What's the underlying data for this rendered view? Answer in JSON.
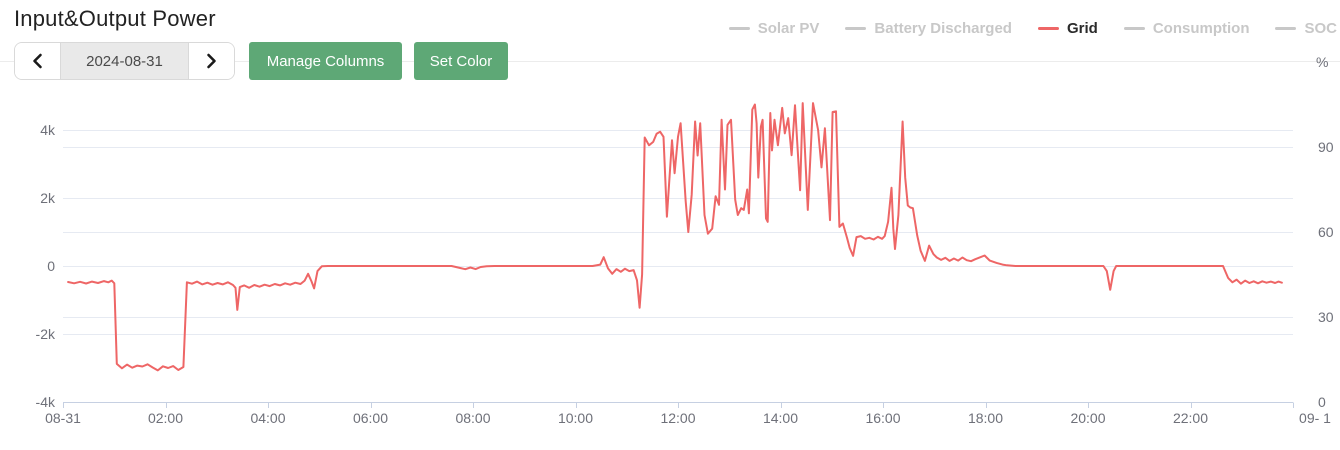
{
  "header": {
    "title": "Input&Output Power",
    "date_nav": {
      "date": "2024-08-31"
    },
    "buttons": {
      "manage_columns": "Manage Columns",
      "set_color": "Set Color"
    }
  },
  "legend": {
    "inactive_color": "#c8c8c8",
    "active_text_color": "#2b2b2b",
    "items": [
      {
        "label": "Solar PV",
        "active": false
      },
      {
        "label": "Battery Discharged",
        "active": false
      },
      {
        "label": "Grid",
        "active": true,
        "color": "#ee6666"
      },
      {
        "label": "Consumption",
        "active": false
      },
      {
        "label": "SOC",
        "active": false
      }
    ]
  },
  "chart_data": {
    "type": "line",
    "title": "Input&Output Power",
    "x_unit": "minutes from 2024-08-31 00:00",
    "x_range": [
      0,
      1440
    ],
    "grid_on": true,
    "legend_position": "top-right",
    "x_ticks": [
      {
        "t": 0,
        "label": "08-31"
      },
      {
        "t": 120,
        "label": "02:00"
      },
      {
        "t": 240,
        "label": "04:00"
      },
      {
        "t": 360,
        "label": "06:00"
      },
      {
        "t": 480,
        "label": "08:00"
      },
      {
        "t": 600,
        "label": "10:00"
      },
      {
        "t": 720,
        "label": "12:00"
      },
      {
        "t": 840,
        "label": "14:00"
      },
      {
        "t": 960,
        "label": "16:00"
      },
      {
        "t": 1080,
        "label": "18:00"
      },
      {
        "t": 1200,
        "label": "20:00"
      },
      {
        "t": 1320,
        "label": "22:00"
      },
      {
        "t": 1440,
        "label": "09- 1",
        "dx": 22
      }
    ],
    "y_left": {
      "unit": "W",
      "min": -4000,
      "max": 6000,
      "ticks": [
        {
          "v": 4000,
          "label": "4k"
        },
        {
          "v": 2000,
          "label": "2k"
        },
        {
          "v": 0,
          "label": "0"
        },
        {
          "v": -2000,
          "label": "-2k"
        },
        {
          "v": -4000,
          "label": "-4k"
        }
      ],
      "gridlines": [
        4000,
        2000,
        0,
        -2000,
        -4000
      ]
    },
    "y_right": {
      "name": "%",
      "min": 0,
      "max": 120,
      "ticks": [
        {
          "v": 90,
          "label": "90"
        },
        {
          "v": 60,
          "label": "60"
        },
        {
          "v": 30,
          "label": "30"
        },
        {
          "v": 0,
          "label": "0"
        }
      ],
      "gridlines": [
        90,
        60,
        30,
        0
      ]
    },
    "series": [
      {
        "name": "Grid",
        "color": "#ee6666",
        "width": 2,
        "axis": "left",
        "points": [
          [
            6,
            -470
          ],
          [
            13,
            -510
          ],
          [
            20,
            -465
          ],
          [
            27,
            -515
          ],
          [
            34,
            -460
          ],
          [
            41,
            -500
          ],
          [
            48,
            -445
          ],
          [
            53,
            -480
          ],
          [
            57,
            -430
          ],
          [
            60,
            -510
          ],
          [
            63,
            -2880
          ],
          [
            69,
            -3010
          ],
          [
            75,
            -2900
          ],
          [
            81,
            -2990
          ],
          [
            87,
            -2930
          ],
          [
            93,
            -2955
          ],
          [
            99,
            -2890
          ],
          [
            105,
            -2985
          ],
          [
            111,
            -3070
          ],
          [
            117,
            -2950
          ],
          [
            123,
            -3000
          ],
          [
            129,
            -2945
          ],
          [
            135,
            -3060
          ],
          [
            141,
            -2970
          ],
          [
            145,
            -480
          ],
          [
            151,
            -520
          ],
          [
            157,
            -460
          ],
          [
            163,
            -540
          ],
          [
            169,
            -490
          ],
          [
            175,
            -550
          ],
          [
            181,
            -500
          ],
          [
            187,
            -540
          ],
          [
            193,
            -480
          ],
          [
            199,
            -560
          ],
          [
            202,
            -640
          ],
          [
            204,
            -1290
          ],
          [
            207,
            -620
          ],
          [
            212,
            -570
          ],
          [
            218,
            -640
          ],
          [
            224,
            -560
          ],
          [
            230,
            -610
          ],
          [
            236,
            -550
          ],
          [
            242,
            -590
          ],
          [
            248,
            -530
          ],
          [
            254,
            -570
          ],
          [
            260,
            -510
          ],
          [
            266,
            -550
          ],
          [
            272,
            -490
          ],
          [
            278,
            -530
          ],
          [
            283,
            -430
          ],
          [
            287,
            -230
          ],
          [
            291,
            -460
          ],
          [
            294,
            -660
          ],
          [
            298,
            -150
          ],
          [
            303,
            -10
          ],
          [
            310,
            0
          ],
          [
            455,
            0
          ],
          [
            465,
            -60
          ],
          [
            471,
            -95
          ],
          [
            477,
            -45
          ],
          [
            483,
            -90
          ],
          [
            489,
            -30
          ],
          [
            496,
            -5
          ],
          [
            505,
            0
          ],
          [
            620,
            0
          ],
          [
            629,
            40
          ],
          [
            633,
            260
          ],
          [
            638,
            -70
          ],
          [
            643,
            -230
          ],
          [
            648,
            -90
          ],
          [
            653,
            -170
          ],
          [
            658,
            -80
          ],
          [
            663,
            -150
          ],
          [
            668,
            -120
          ],
          [
            672,
            -420
          ],
          [
            675,
            -1230
          ],
          [
            678,
            -250
          ],
          [
            681,
            3780
          ],
          [
            686,
            3550
          ],
          [
            691,
            3650
          ],
          [
            695,
            3890
          ],
          [
            699,
            3950
          ],
          [
            703,
            3800
          ],
          [
            707,
            1450
          ],
          [
            713,
            3700
          ],
          [
            716,
            2730
          ],
          [
            720,
            3800
          ],
          [
            723,
            4200
          ],
          [
            729,
            1900
          ],
          [
            732,
            1000
          ],
          [
            736,
            2100
          ],
          [
            740,
            4250
          ],
          [
            743,
            3250
          ],
          [
            746,
            4200
          ],
          [
            751,
            1500
          ],
          [
            755,
            950
          ],
          [
            760,
            1100
          ],
          [
            764,
            2050
          ],
          [
            768,
            1800
          ],
          [
            771,
            4300
          ],
          [
            775,
            2250
          ],
          [
            778,
            4150
          ],
          [
            782,
            4300
          ],
          [
            787,
            1950
          ],
          [
            790,
            1500
          ],
          [
            794,
            1700
          ],
          [
            797,
            1650
          ],
          [
            801,
            2250
          ],
          [
            803,
            1550
          ],
          [
            807,
            4600
          ],
          [
            810,
            4750
          ],
          [
            812,
            4200
          ],
          [
            814,
            2600
          ],
          [
            817,
            4100
          ],
          [
            819,
            4300
          ],
          [
            823,
            1400
          ],
          [
            825,
            1300
          ],
          [
            828,
            4500
          ],
          [
            830,
            3400
          ],
          [
            833,
            4300
          ],
          [
            837,
            3550
          ],
          [
            842,
            4650
          ],
          [
            845,
            3900
          ],
          [
            849,
            4350
          ],
          [
            853,
            3260
          ],
          [
            857,
            4730
          ],
          [
            863,
            2230
          ],
          [
            866,
            4790
          ],
          [
            872,
            1650
          ],
          [
            878,
            4790
          ],
          [
            884,
            4000
          ],
          [
            888,
            2900
          ],
          [
            892,
            4050
          ],
          [
            898,
            1350
          ],
          [
            901,
            4530
          ],
          [
            905,
            4550
          ],
          [
            909,
            1150
          ],
          [
            913,
            1250
          ],
          [
            918,
            820
          ],
          [
            921,
            530
          ],
          [
            925,
            300
          ],
          [
            929,
            850
          ],
          [
            934,
            880
          ],
          [
            939,
            800
          ],
          [
            944,
            830
          ],
          [
            949,
            780
          ],
          [
            954,
            860
          ],
          [
            959,
            800
          ],
          [
            962,
            880
          ],
          [
            966,
            1300
          ],
          [
            970,
            2300
          ],
          [
            972,
            1100
          ],
          [
            974,
            500
          ],
          [
            978,
            1500
          ],
          [
            983,
            4250
          ],
          [
            986,
            2600
          ],
          [
            989,
            1780
          ],
          [
            992,
            1720
          ],
          [
            995,
            1700
          ],
          [
            1000,
            900
          ],
          [
            1004,
            450
          ],
          [
            1009,
            150
          ],
          [
            1014,
            600
          ],
          [
            1019,
            350
          ],
          [
            1023,
            250
          ],
          [
            1028,
            180
          ],
          [
            1033,
            240
          ],
          [
            1038,
            150
          ],
          [
            1043,
            220
          ],
          [
            1048,
            160
          ],
          [
            1053,
            250
          ],
          [
            1058,
            170
          ],
          [
            1063,
            140
          ],
          [
            1068,
            200
          ],
          [
            1074,
            260
          ],
          [
            1079,
            310
          ],
          [
            1085,
            160
          ],
          [
            1093,
            90
          ],
          [
            1100,
            40
          ],
          [
            1105,
            20
          ],
          [
            1115,
            0
          ],
          [
            1218,
            0
          ],
          [
            1222,
            -150
          ],
          [
            1226,
            -700
          ],
          [
            1230,
            -150
          ],
          [
            1233,
            0
          ],
          [
            1238,
            0
          ],
          [
            1358,
            0
          ],
          [
            1364,
            -350
          ],
          [
            1369,
            -480
          ],
          [
            1374,
            -400
          ],
          [
            1379,
            -520
          ],
          [
            1384,
            -430
          ],
          [
            1389,
            -500
          ],
          [
            1394,
            -450
          ],
          [
            1399,
            -510
          ],
          [
            1404,
            -450
          ],
          [
            1409,
            -490
          ],
          [
            1414,
            -460
          ],
          [
            1419,
            -500
          ],
          [
            1423,
            -460
          ],
          [
            1427,
            -490
          ]
        ]
      }
    ]
  },
  "colors": {
    "accent_green": "#5EA876",
    "series_red": "#ee6666",
    "gridline": "#E6EAF2",
    "axis_line": "#C6D0E2",
    "axis_text": "#6E7079",
    "divider": "#ececec"
  }
}
